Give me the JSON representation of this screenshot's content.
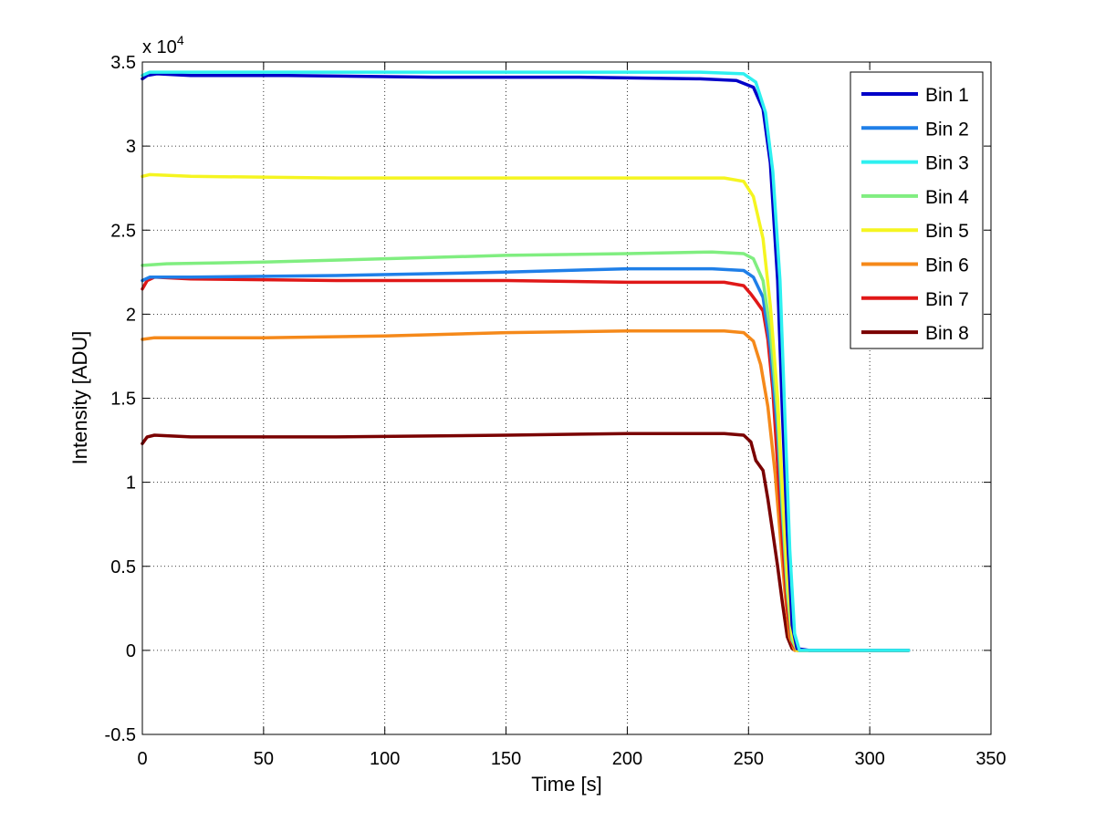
{
  "chart_data": {
    "type": "line",
    "title": "",
    "xlabel": "Time [s]",
    "ylabel": "Intensity [ADU]",
    "y_multiplier_label": "x 10",
    "y_multiplier_exponent": "4",
    "xlim": [
      0,
      350
    ],
    "ylim": [
      -0.5,
      3.5
    ],
    "y_units_scale": 10000,
    "grid": true,
    "legend_position": "top-right",
    "x_ticks": [
      0,
      50,
      100,
      150,
      200,
      250,
      300,
      350
    ],
    "x_tick_labels": [
      "0",
      "50",
      "100",
      "150",
      "200",
      "250",
      "300",
      "350"
    ],
    "y_ticks": [
      -0.5,
      0,
      0.5,
      1,
      1.5,
      2,
      2.5,
      3,
      3.5
    ],
    "y_tick_labels": [
      "-0.5",
      "0",
      "0.5",
      "1",
      "1.5",
      "2",
      "2.5",
      "3",
      "3.5"
    ],
    "series": [
      {
        "name": "Bin 1",
        "color": "#0000c8",
        "points": [
          [
            0,
            3.4
          ],
          [
            2,
            3.42
          ],
          [
            6,
            3.43
          ],
          [
            20,
            3.42
          ],
          [
            60,
            3.42
          ],
          [
            120,
            3.41
          ],
          [
            180,
            3.41
          ],
          [
            230,
            3.4
          ],
          [
            245,
            3.39
          ],
          [
            252,
            3.35
          ],
          [
            256,
            3.22
          ],
          [
            259,
            2.9
          ],
          [
            262,
            2.2
          ],
          [
            264,
            1.4
          ],
          [
            266,
            0.7
          ],
          [
            268,
            0.15
          ],
          [
            270,
            0.01
          ],
          [
            275,
            0.0
          ],
          [
            316,
            0.0
          ]
        ]
      },
      {
        "name": "Bin 2",
        "color": "#1f7fe8",
        "points": [
          [
            0,
            2.2
          ],
          [
            3,
            2.22
          ],
          [
            20,
            2.22
          ],
          [
            80,
            2.23
          ],
          [
            150,
            2.25
          ],
          [
            200,
            2.27
          ],
          [
            235,
            2.27
          ],
          [
            248,
            2.26
          ],
          [
            252,
            2.22
          ],
          [
            256,
            2.1
          ],
          [
            259,
            1.8
          ],
          [
            262,
            1.3
          ],
          [
            264,
            0.8
          ],
          [
            266,
            0.35
          ],
          [
            268,
            0.08
          ],
          [
            270,
            0.0
          ],
          [
            316,
            0.0
          ]
        ]
      },
      {
        "name": "Bin 3",
        "color": "#2ef0f0",
        "points": [
          [
            0,
            3.42
          ],
          [
            3,
            3.44
          ],
          [
            10,
            3.44
          ],
          [
            60,
            3.44
          ],
          [
            120,
            3.44
          ],
          [
            180,
            3.44
          ],
          [
            230,
            3.44
          ],
          [
            248,
            3.43
          ],
          [
            253,
            3.38
          ],
          [
            257,
            3.2
          ],
          [
            260,
            2.85
          ],
          [
            263,
            2.2
          ],
          [
            265,
            1.4
          ],
          [
            267,
            0.6
          ],
          [
            269,
            0.1
          ],
          [
            271,
            0.0
          ],
          [
            316,
            0.0
          ]
        ]
      },
      {
        "name": "Bin 4",
        "color": "#80ee80",
        "points": [
          [
            0,
            2.29
          ],
          [
            10,
            2.3
          ],
          [
            50,
            2.31
          ],
          [
            100,
            2.33
          ],
          [
            150,
            2.35
          ],
          [
            200,
            2.36
          ],
          [
            235,
            2.37
          ],
          [
            248,
            2.36
          ],
          [
            252,
            2.33
          ],
          [
            256,
            2.2
          ],
          [
            259,
            1.9
          ],
          [
            262,
            1.4
          ],
          [
            264,
            0.85
          ],
          [
            266,
            0.35
          ],
          [
            268,
            0.06
          ],
          [
            270,
            0.0
          ],
          [
            316,
            0.0
          ]
        ]
      },
      {
        "name": "Bin 5",
        "color": "#f5f520",
        "points": [
          [
            0,
            2.82
          ],
          [
            3,
            2.83
          ],
          [
            20,
            2.82
          ],
          [
            80,
            2.81
          ],
          [
            150,
            2.81
          ],
          [
            200,
            2.81
          ],
          [
            240,
            2.81
          ],
          [
            248,
            2.79
          ],
          [
            252,
            2.7
          ],
          [
            256,
            2.45
          ],
          [
            259,
            2.05
          ],
          [
            262,
            1.5
          ],
          [
            264,
            0.95
          ],
          [
            266,
            0.45
          ],
          [
            268,
            0.1
          ],
          [
            270,
            0.0
          ],
          [
            316,
            0.0
          ]
        ]
      },
      {
        "name": "Bin 6",
        "color": "#f5891a",
        "points": [
          [
            0,
            1.85
          ],
          [
            5,
            1.86
          ],
          [
            50,
            1.86
          ],
          [
            100,
            1.87
          ],
          [
            150,
            1.89
          ],
          [
            200,
            1.9
          ],
          [
            240,
            1.9
          ],
          [
            248,
            1.89
          ],
          [
            252,
            1.84
          ],
          [
            255,
            1.7
          ],
          [
            258,
            1.45
          ],
          [
            261,
            1.05
          ],
          [
            263,
            0.7
          ],
          [
            265,
            0.35
          ],
          [
            267,
            0.08
          ],
          [
            269,
            0.0
          ],
          [
            316,
            0.0
          ]
        ]
      },
      {
        "name": "Bin 7",
        "color": "#e01818",
        "points": [
          [
            0,
            2.15
          ],
          [
            2,
            2.2
          ],
          [
            5,
            2.22
          ],
          [
            20,
            2.21
          ],
          [
            80,
            2.2
          ],
          [
            150,
            2.2
          ],
          [
            200,
            2.19
          ],
          [
            240,
            2.19
          ],
          [
            248,
            2.17
          ],
          [
            251,
            2.12
          ],
          [
            253,
            2.08
          ],
          [
            256,
            2.02
          ],
          [
            258,
            1.85
          ],
          [
            260,
            1.55
          ],
          [
            262,
            1.1
          ],
          [
            264,
            0.65
          ],
          [
            266,
            0.25
          ],
          [
            268,
            0.04
          ],
          [
            270,
            0.0
          ],
          [
            316,
            0.0
          ]
        ]
      },
      {
        "name": "Bin 8",
        "color": "#7a0000",
        "points": [
          [
            0,
            1.23
          ],
          [
            2,
            1.27
          ],
          [
            5,
            1.28
          ],
          [
            20,
            1.27
          ],
          [
            80,
            1.27
          ],
          [
            150,
            1.28
          ],
          [
            200,
            1.29
          ],
          [
            240,
            1.29
          ],
          [
            248,
            1.28
          ],
          [
            251,
            1.24
          ],
          [
            253,
            1.13
          ],
          [
            256,
            1.07
          ],
          [
            258,
            0.9
          ],
          [
            260,
            0.7
          ],
          [
            262,
            0.5
          ],
          [
            264,
            0.28
          ],
          [
            266,
            0.08
          ],
          [
            268,
            0.01
          ],
          [
            270,
            0.0
          ],
          [
            316,
            0.0
          ]
        ]
      }
    ]
  }
}
